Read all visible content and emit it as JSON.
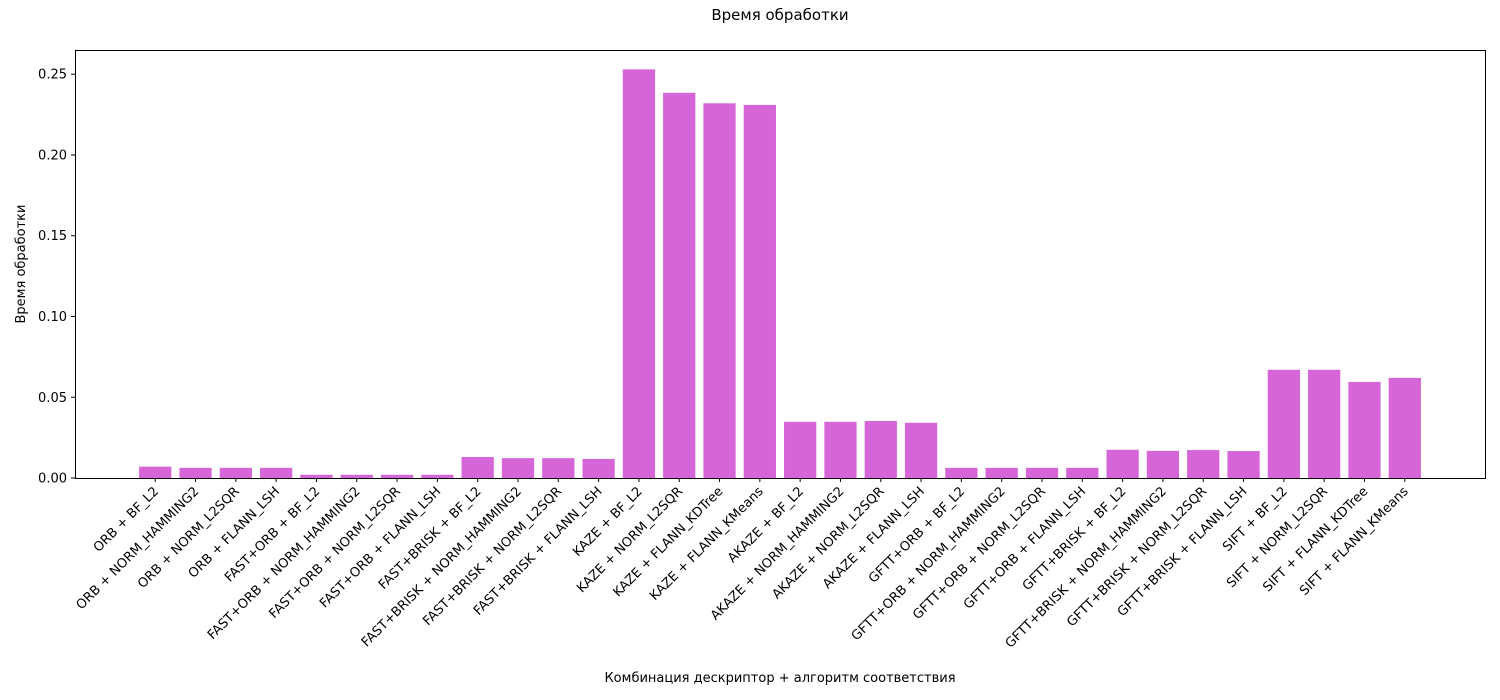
{
  "chart_data": {
    "type": "bar",
    "title": "Время обработки",
    "xlabel": "Комбинация дескриптор + алгоритм соответствия",
    "ylabel": "Время обработки",
    "ylim": [
      0,
      0.265
    ],
    "yticks": [
      "0.00",
      "0.05",
      "0.10",
      "0.15",
      "0.20",
      "0.25"
    ],
    "ytick_values": [
      0,
      0.05,
      0.1,
      0.15,
      0.2,
      0.25
    ],
    "grid": false,
    "bar_color": "#d666d8",
    "categories": [
      "ORB + BF_L2",
      "ORB + NORM_HAMMING2",
      "ORB + NORM_L2SQR",
      "ORB + FLANN_LSH",
      "FAST+ORB + BF_L2",
      "FAST+ORB + NORM_HAMMING2",
      "FAST+ORB + NORM_L2SQR",
      "FAST+ORB + FLANN_LSH",
      "FAST+BRISK + BF_L2",
      "FAST+BRISK + NORM_HAMMING2",
      "FAST+BRISK + NORM_L2SQR",
      "FAST+BRISK + FLANN_LSH",
      "KAZE + BF_L2",
      "KAZE + NORM_L2SQR",
      "KAZE + FLANN_KDTree",
      "KAZE + FLANN_KMeans",
      "AKAZE + BF_L2",
      "AKAZE + NORM_HAMMING2",
      "AKAZE + NORM_L2SQR",
      "AKAZE + FLANN_LSH",
      "GFTT+ORB + BF_L2",
      "GFTT+ORB + NORM_HAMMING2",
      "GFTT+ORB + NORM_L2SQR",
      "GFTT+ORB + FLANN_LSH",
      "GFTT+BRISK + BF_L2",
      "GFTT+BRISK + NORM_HAMMING2",
      "GFTT+BRISK + NORM_L2SQR",
      "GFTT+BRISK + FLANN_LSH",
      "SIFT + BF_L2",
      "SIFT + NORM_L2SQR",
      "SIFT + FLANN_KDTree",
      "SIFT + FLANN_KMeans"
    ],
    "values": [
      0.007,
      0.0063,
      0.0063,
      0.0063,
      0.002,
      0.002,
      0.002,
      0.002,
      0.013,
      0.0123,
      0.0123,
      0.0118,
      0.253,
      0.2385,
      0.232,
      0.231,
      0.0348,
      0.0348,
      0.0353,
      0.0342,
      0.0063,
      0.0063,
      0.0063,
      0.0063,
      0.0175,
      0.0168,
      0.0173,
      0.0167,
      0.067,
      0.067,
      0.0595,
      0.062
    ]
  }
}
